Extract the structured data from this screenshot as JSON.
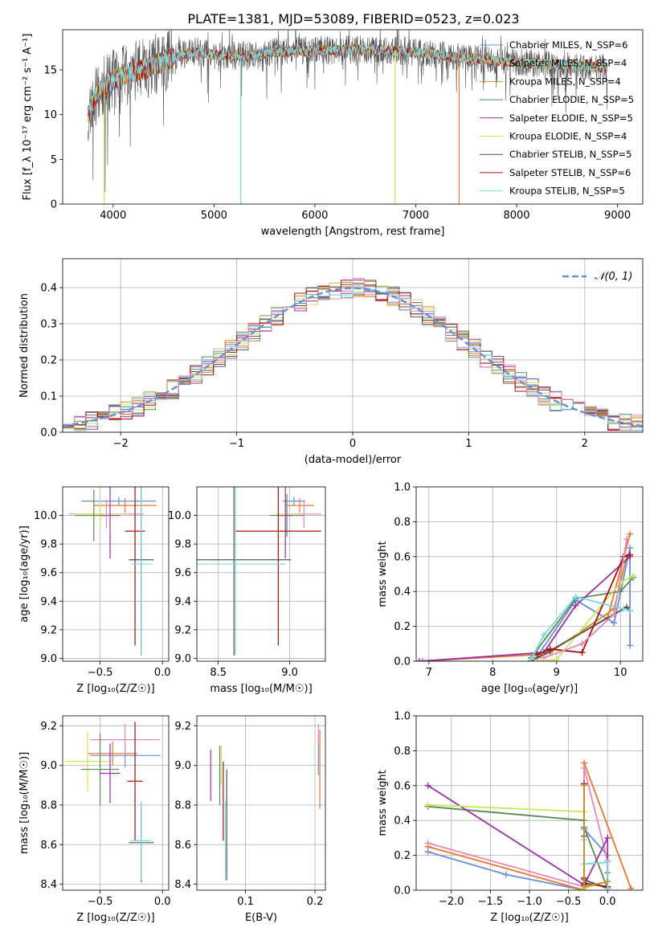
{
  "title": "PLATE=1381, MJD=53089, FIBERID=0523, z=0.023",
  "colors": {
    "blue": "#6a8fd8",
    "orange": "#e8772e",
    "gold": "#c8902a",
    "green": "#5a8a5a",
    "purple": "#9b30a8",
    "lime": "#c8e85a",
    "grey": "#555555",
    "red": "#a81010",
    "cyan": "#7ad8e0",
    "pink": "#e888b8",
    "olive": "#6a7a3a"
  },
  "chart_data": [
    {
      "id": "spectrum",
      "type": "line",
      "xlabel": "wavelength [Angstrom, rest frame]",
      "ylabel": "Flux [f_λ 10⁻¹⁷ erg cm⁻² s⁻¹ A⁻¹]",
      "xlim": [
        3500,
        9250
      ],
      "ylim": [
        0,
        19.5
      ],
      "xticks": [
        4000,
        5000,
        6000,
        7000,
        8000,
        9000
      ],
      "yticks": [
        0,
        5,
        10,
        15
      ],
      "legend_position": "top-right",
      "legend": [
        {
          "label": "Chabrier MILES, N_SSP=6",
          "color": "blue"
        },
        {
          "label": "Salpeter MILES, N_SSP=4",
          "color": "orange"
        },
        {
          "label": "Kroupa MILES, N_SSP=4",
          "color": "gold"
        },
        {
          "label": "Chabrier ELODIE, N_SSP=5",
          "color": "green"
        },
        {
          "label": "Salpeter ELODIE, N_SSP=5",
          "color": "purple"
        },
        {
          "label": "Kroupa ELODIE, N_SSP=4",
          "color": "lime"
        },
        {
          "label": "Chabrier STELIB, N_SSP=5",
          "color": "grey"
        },
        {
          "label": "Salpeter STELIB, N_SSP=6",
          "color": "red"
        },
        {
          "label": "Kroupa STELIB, N_SSP=5",
          "color": "cyan"
        }
      ],
      "continuum": [
        [
          3750,
          10
        ],
        [
          3850,
          12.5
        ],
        [
          3950,
          13.5
        ],
        [
          4100,
          14.5
        ],
        [
          4300,
          15
        ],
        [
          4500,
          16
        ],
        [
          4800,
          17
        ],
        [
          5000,
          16.7
        ],
        [
          5300,
          16.5
        ],
        [
          5600,
          17
        ],
        [
          6000,
          17.2
        ],
        [
          6500,
          17.3
        ],
        [
          7000,
          17
        ],
        [
          7500,
          16.3
        ],
        [
          8000,
          15.8
        ],
        [
          8500,
          15.6
        ],
        [
          8900,
          15.2
        ]
      ],
      "drops": [
        {
          "x": 3912,
          "color": "lime"
        },
        {
          "x": 5265,
          "color": "cyan"
        },
        {
          "x": 6795,
          "color": "lime"
        },
        {
          "x": 7430,
          "color": "orange"
        }
      ]
    },
    {
      "id": "residuals",
      "type": "histogram",
      "xlabel": "(data-model)/error",
      "ylabel": "Normed distribution",
      "xlim": [
        -2.5,
        2.5
      ],
      "ylim": [
        0,
        0.48
      ],
      "xticks": [
        -2,
        -1,
        0,
        1,
        2
      ],
      "yticks": [
        0,
        0.1,
        0.2,
        0.3,
        0.4
      ],
      "grid": true,
      "legend": [
        {
          "label": "𝒩(0, 1)",
          "color": "blue",
          "style": "dashed"
        }
      ],
      "legend_position": "top-right",
      "bin_width": 0.1,
      "series_colors": [
        "blue",
        "orange",
        "gold",
        "green",
        "purple",
        "lime",
        "grey",
        "red",
        "cyan",
        "pink"
      ]
    },
    {
      "id": "age-vs-Z",
      "type": "errorbar",
      "xlabel": "Z [log₁₀(Z/Z☉)]",
      "ylabel": "age  [log₁₀(age/yr)]",
      "xlim": [
        -0.8,
        0.05
      ],
      "ylim": [
        8.98,
        10.2
      ],
      "xticks": [
        -0.5,
        0.0
      ],
      "yticks": [
        9.0,
        9.2,
        9.4,
        9.6,
        9.8,
        10.0
      ],
      "grid": true,
      "points": [
        {
          "x": -0.35,
          "y": 10.1,
          "xerr": 0.3,
          "yerr": 0.03,
          "color": "blue"
        },
        {
          "x": -0.3,
          "y": 10.07,
          "xerr": 0.25,
          "yerr": 0.05,
          "color": "orange"
        },
        {
          "x": -0.45,
          "y": 10.01,
          "xerr": 0.3,
          "yerr": 0.1,
          "color": "pink"
        },
        {
          "x": -0.5,
          "y": 10.01,
          "xerr": 0.2,
          "yerr": 0.1,
          "color": "lime"
        },
        {
          "x": -0.55,
          "y": 10.0,
          "xerr": 0.15,
          "yerr": 0.18,
          "color": "green"
        },
        {
          "x": -0.42,
          "y": 10.0,
          "xerr": 0.08,
          "yerr": 0.3,
          "color": "purple"
        },
        {
          "x": -0.22,
          "y": 9.89,
          "xerr": 0.08,
          "yerr": 0.8,
          "color": "red"
        },
        {
          "x": -0.17,
          "y": 9.69,
          "xerr": 0.1,
          "yerr": 0.67,
          "color": "grey"
        },
        {
          "x": -0.17,
          "y": 9.66,
          "xerr": 0.08,
          "yerr": 0.64,
          "color": "cyan"
        }
      ]
    },
    {
      "id": "age-vs-mass",
      "type": "errorbar",
      "xlabel": "mass [log₁₀(M/M☉)]",
      "ylabel": "",
      "xlim": [
        8.35,
        9.25
      ],
      "ylim": [
        8.98,
        10.2
      ],
      "xticks": [
        8.5,
        9.0
      ],
      "yticks": [
        9.0,
        9.2,
        9.4,
        9.6,
        9.8,
        10.0
      ],
      "grid": true,
      "points": [
        {
          "x": 9.03,
          "y": 10.1,
          "xerr": 0.08,
          "yerr": 0.03,
          "color": "blue"
        },
        {
          "x": 9.07,
          "y": 10.07,
          "xerr": 0.1,
          "yerr": 0.05,
          "color": "orange"
        },
        {
          "x": 9.1,
          "y": 10.01,
          "xerr": 0.12,
          "yerr": 0.1,
          "color": "pink"
        },
        {
          "x": 8.98,
          "y": 10.01,
          "xerr": 0.08,
          "yerr": 0.1,
          "color": "lime"
        },
        {
          "x": 8.98,
          "y": 10.0,
          "xerr": 0.12,
          "yerr": 0.15,
          "color": "green"
        },
        {
          "x": 8.97,
          "y": 10.0,
          "xerr": 0.05,
          "yerr": 0.3,
          "color": "purple"
        },
        {
          "x": 8.92,
          "y": 9.89,
          "xerr": 0.3,
          "yerr": 0.8,
          "color": "red"
        },
        {
          "x": 8.61,
          "y": 9.69,
          "xerr": 0.4,
          "yerr": 0.67,
          "color": "grey"
        },
        {
          "x": 8.62,
          "y": 9.66,
          "xerr": 0.35,
          "yerr": 0.64,
          "color": "cyan"
        }
      ]
    },
    {
      "id": "weight-vs-age",
      "type": "line",
      "xlabel": "age  [log₁₀(age/yr)]",
      "ylabel": "mass weight",
      "xlim": [
        6.8,
        10.35
      ],
      "ylim": [
        0,
        1.0
      ],
      "xticks": [
        7,
        8,
        9,
        10
      ],
      "yticks": [
        0.0,
        0.2,
        0.4,
        0.6,
        0.8,
        1.0
      ],
      "grid": true,
      "series": [
        {
          "color": "blue",
          "x": [
            8.7,
            9.3,
            9.9,
            10.15,
            10.15
          ],
          "y": [
            0.03,
            0.35,
            0.22,
            0.65,
            0.09
          ]
        },
        {
          "color": "orange",
          "x": [
            6.9,
            8.8,
            9.8,
            10.15
          ],
          "y": [
            0.0,
            0.04,
            0.25,
            0.73
          ]
        },
        {
          "color": "gold",
          "x": [
            8.7,
            8.9,
            9.9,
            10.1
          ],
          "y": [
            0.02,
            0.05,
            0.3,
            0.6
          ]
        },
        {
          "color": "green",
          "x": [
            8.6,
            9.3,
            10.0,
            10.2
          ],
          "y": [
            0.02,
            0.36,
            0.4,
            0.48
          ]
        },
        {
          "color": "purple",
          "x": [
            6.85,
            8.8,
            9.3,
            10.15
          ],
          "y": [
            0.0,
            0.05,
            0.32,
            0.6
          ]
        },
        {
          "color": "lime",
          "x": [
            8.75,
            9.0,
            10.0,
            10.2
          ],
          "y": [
            0.0,
            0.01,
            0.45,
            0.49
          ]
        },
        {
          "color": "grey",
          "x": [
            8.6,
            8.9,
            10.1,
            10.15
          ],
          "y": [
            0.0,
            0.06,
            0.31,
            0.29
          ]
        },
        {
          "color": "red",
          "x": [
            8.7,
            8.9,
            9.4,
            10.05,
            10.15
          ],
          "y": [
            0.04,
            0.07,
            0.05,
            0.6,
            0.61
          ]
        },
        {
          "color": "cyan",
          "x": [
            8.6,
            8.8,
            9.3,
            10.05,
            10.15
          ],
          "y": [
            0.01,
            0.15,
            0.37,
            0.3,
            0.29
          ]
        },
        {
          "color": "pink",
          "x": [
            8.8,
            9.4,
            9.9,
            10.1
          ],
          "y": [
            0.02,
            0.1,
            0.27,
            0.7
          ]
        }
      ]
    },
    {
      "id": "mass-vs-Z",
      "type": "errorbar",
      "xlabel": "Z [log₁₀(Z/Z☉)]",
      "ylabel": "mass [log₁₀(M/M☉)]",
      "xlim": [
        -0.8,
        0.05
      ],
      "ylim": [
        8.37,
        9.25
      ],
      "xticks": [
        -0.5,
        0.0
      ],
      "yticks": [
        8.4,
        8.6,
        8.8,
        9.0,
        9.2
      ],
      "grid": true,
      "points": [
        {
          "x": -0.3,
          "y": 9.05,
          "xerr": 0.28,
          "yerr": 0.06,
          "color": "blue"
        },
        {
          "x": -0.4,
          "y": 9.06,
          "xerr": 0.2,
          "yerr": 0.06,
          "color": "orange"
        },
        {
          "x": -0.3,
          "y": 9.13,
          "xerr": 0.28,
          "yerr": 0.08,
          "color": "pink"
        },
        {
          "x": -0.6,
          "y": 9.02,
          "xerr": 0.18,
          "yerr": 0.15,
          "color": "lime"
        },
        {
          "x": -0.5,
          "y": 8.98,
          "xerr": 0.15,
          "yerr": 0.18,
          "color": "green"
        },
        {
          "x": -0.42,
          "y": 8.96,
          "xerr": 0.08,
          "yerr": 0.15,
          "color": "purple"
        },
        {
          "x": -0.22,
          "y": 8.92,
          "xerr": 0.06,
          "yerr": 0.3,
          "color": "red"
        },
        {
          "x": -0.17,
          "y": 8.61,
          "xerr": 0.1,
          "yerr": 0.2,
          "color": "grey"
        },
        {
          "x": -0.17,
          "y": 8.62,
          "xerr": 0.08,
          "yerr": 0.2,
          "color": "cyan"
        }
      ]
    },
    {
      "id": "mass-vs-ebv",
      "type": "errorbar",
      "xlabel": "E(B-V)",
      "ylabel": "",
      "xlim": [
        0.03,
        0.215
      ],
      "ylim": [
        8.37,
        9.25
      ],
      "xticks": [
        0.1,
        0.2
      ],
      "yticks": [
        8.4,
        8.6,
        8.8,
        9.0,
        9.2
      ],
      "grid": true,
      "points": [
        {
          "x": 0.205,
          "y": 9.05,
          "yerr": 0.1,
          "color": "blue"
        },
        {
          "x": 0.207,
          "y": 8.98,
          "yerr": 0.2,
          "color": "orange"
        },
        {
          "x": 0.205,
          "y": 9.16,
          "yerr": 0.05,
          "color": "pink"
        },
        {
          "x": 0.065,
          "y": 9.0,
          "yerr": 0.1,
          "color": "lime"
        },
        {
          "x": 0.063,
          "y": 8.95,
          "yerr": 0.15,
          "color": "green"
        },
        {
          "x": 0.05,
          "y": 8.95,
          "yerr": 0.13,
          "color": "purple"
        },
        {
          "x": 0.068,
          "y": 8.82,
          "yerr": 0.2,
          "color": "red"
        },
        {
          "x": 0.073,
          "y": 8.7,
          "yerr": 0.28,
          "color": "grey"
        },
        {
          "x": 0.071,
          "y": 8.62,
          "yerr": 0.2,
          "color": "cyan"
        }
      ]
    },
    {
      "id": "weight-vs-Z",
      "type": "line",
      "xlabel": "Z [log₁₀(Z/Z☉)]",
      "ylabel": "mass weight",
      "xlim": [
        -2.45,
        0.45
      ],
      "ylim": [
        0,
        1.0
      ],
      "xticks": [
        -2.0,
        -1.5,
        -1.0,
        -0.5,
        0.0
      ],
      "yticks": [
        0.0,
        0.2,
        0.4,
        0.6,
        0.8,
        1.0
      ],
      "grid": true,
      "series": [
        {
          "color": "blue",
          "x": [
            -2.3,
            -1.3,
            -0.3,
            -0.3,
            0.0,
            0.0
          ],
          "y": [
            0.22,
            0.09,
            0.0,
            0.35,
            0.2,
            0.1
          ]
        },
        {
          "color": "orange",
          "x": [
            -2.3,
            -0.3,
            -0.3,
            0.3
          ],
          "y": [
            0.25,
            0.0,
            0.73,
            0.01
          ]
        },
        {
          "color": "pink",
          "x": [
            -2.3,
            -0.3,
            -0.3,
            0.0
          ],
          "y": [
            0.27,
            0.02,
            0.7,
            0.17
          ]
        },
        {
          "color": "green",
          "x": [
            -2.3,
            -0.3,
            -0.3,
            0.0
          ],
          "y": [
            0.48,
            0.4,
            0.36,
            0.01
          ]
        },
        {
          "color": "purple",
          "x": [
            -2.3,
            -0.3,
            0.0,
            0.0
          ],
          "y": [
            0.6,
            0.03,
            0.3,
            0.05
          ]
        },
        {
          "color": "lime",
          "x": [
            -2.3,
            -0.3,
            -0.3,
            0.0
          ],
          "y": [
            0.49,
            0.45,
            0.01,
            0.05
          ]
        },
        {
          "color": "grey",
          "x": [
            -0.3,
            -0.3,
            0.0
          ],
          "y": [
            0.31,
            0.06,
            0.01
          ]
        },
        {
          "color": "red",
          "x": [
            -0.3,
            -0.3,
            -0.3,
            0.0
          ],
          "y": [
            0.61,
            0.07,
            0.04,
            0.02
          ]
        },
        {
          "color": "cyan",
          "x": [
            -0.3,
            -0.3,
            0.0,
            0.0
          ],
          "y": [
            0.29,
            0.15,
            0.16,
            0.01
          ]
        },
        {
          "color": "gold",
          "x": [
            -0.3,
            -0.3,
            0.0
          ],
          "y": [
            0.6,
            0.02,
            0.05
          ]
        }
      ]
    }
  ]
}
